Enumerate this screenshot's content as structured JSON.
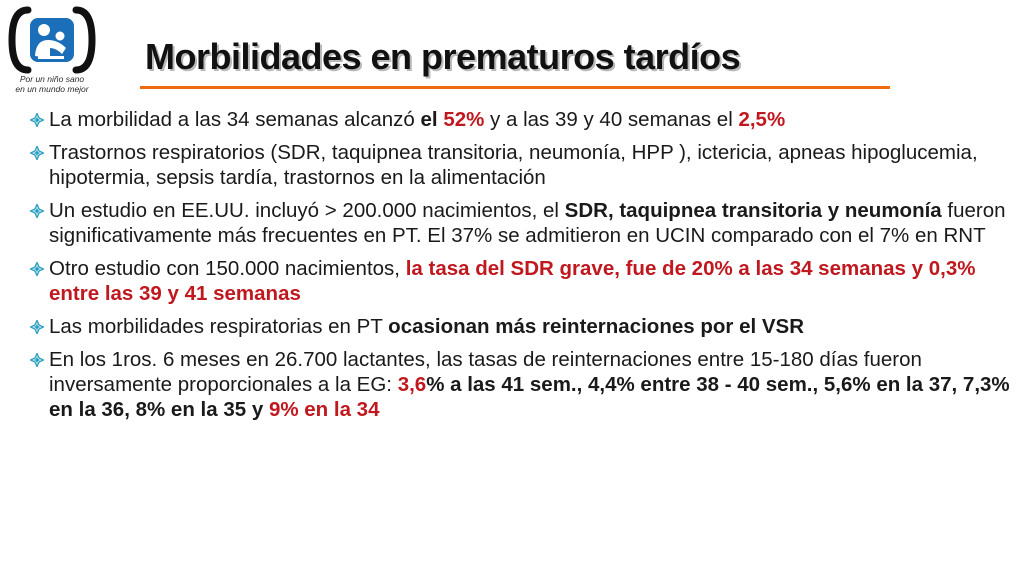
{
  "logo": {
    "icon": "mother-child-icon",
    "caption_line1": "Por un niño sano",
    "caption_line2": "en un mundo mejor",
    "colors": {
      "primary": "#1a6fb8",
      "bracket": "#111111"
    }
  },
  "title": "Morbilidades en prematuros tardíos",
  "accent_color": "#f06b10",
  "highlight_color": "#c0181f",
  "bullet_icon": "diamond-bullet-icon",
  "bullets": [
    {
      "segments": [
        {
          "text": "La morbilidad a las 34 semanas alcanzó "
        },
        {
          "text": "el",
          "bold": true
        },
        {
          "text": " "
        },
        {
          "text": "52%",
          "bold": true,
          "red": true
        },
        {
          "text": " y a las 39 y 40 semanas el "
        },
        {
          "text": "2,5%",
          "bold": true,
          "red": true
        }
      ]
    },
    {
      "segments": [
        {
          "text": " Trastornos respiratorios (SDR, taquipnea transitoria, neumonía, HPP ), ictericia, apneas hipoglucemia, hipotermia, sepsis tardía, trastornos en la alimentación"
        }
      ]
    },
    {
      "segments": [
        {
          "text": " Un estudio en EE.UU. incluyó > 200.000 nacimientos, el "
        },
        {
          "text": "SDR, taquipnea transitoria y neumonía",
          "bold": true
        },
        {
          "text": " fueron significativamente más frecuentes en PT. El 37% se admitieron en UCIN comparado con el 7% en RNT"
        }
      ]
    },
    {
      "segments": [
        {
          "text": " Otro estudio con 150.000 nacimientos, "
        },
        {
          "text": "la tasa del SDR grave, fue de 20% a las 34 semanas y 0,3% entre las 39 y 41 semanas",
          "bold": true,
          "red": true
        }
      ]
    },
    {
      "segments": [
        {
          "text": " Las morbilidades respiratorias en PT "
        },
        {
          "text": "ocasionan más reinternaciones por el VSR",
          "bold": true
        }
      ]
    },
    {
      "segments": [
        {
          "text": " En los 1ros. 6 meses en 26.700 lactantes, las tasas de reinternaciones entre 15-180 días fueron inversamente proporcionales a la EG: "
        },
        {
          "text": "3,6",
          "bold": true,
          "red": true
        },
        {
          "text": "% a las 41 sem.,  4,4% entre 38 - 40 sem., 5,6% en la 37, 7,3% en la 36, 8% en la 35 y ",
          "bold": true
        },
        {
          "text": "9% en la 34",
          "bold": true,
          "red": true
        }
      ]
    }
  ]
}
